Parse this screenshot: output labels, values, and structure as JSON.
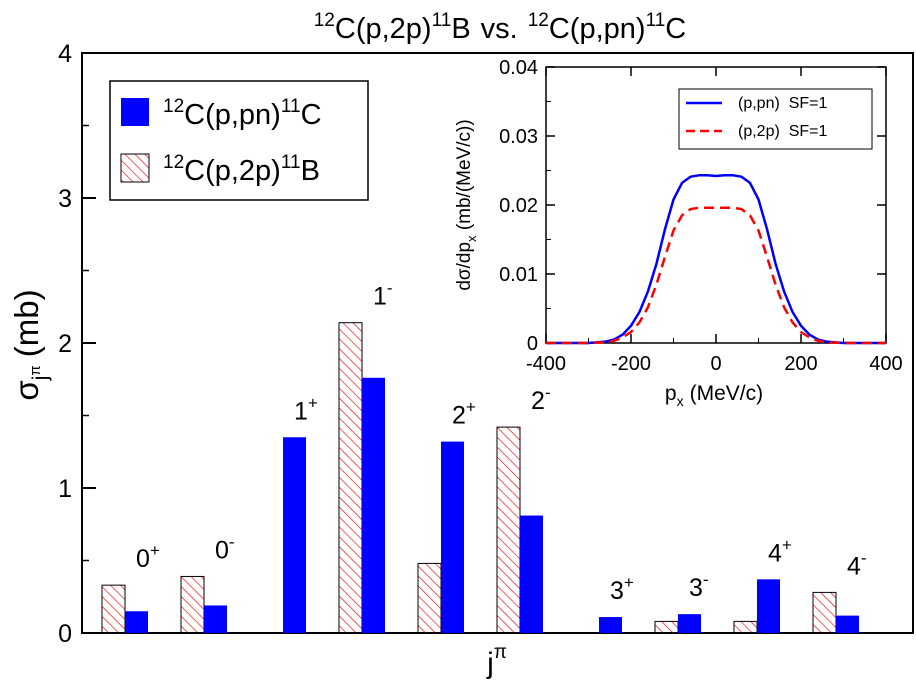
{
  "title": {
    "a_sup1": "12",
    "a_main1": "C(p,2p)",
    "a_sup2": "11",
    "a_main2": "B",
    "vs": "vs.",
    "b_sup1": "12",
    "b_main1": "C(p,pn)",
    "b_sup2": "11",
    "b_main2": "C"
  },
  "main_axes": {
    "xlabel_main": "j",
    "xlabel_sup": "π",
    "ylabel_main": "σ",
    "ylabel_sub": "j",
    "ylabel_subsup": "π",
    "ylabel_unit": "(mb)"
  },
  "legend": {
    "pn": {
      "sup1": "12",
      "main1": "C(p,pn)",
      "sup2": "11",
      "main2": "C"
    },
    "p2p": {
      "sup1": "12",
      "main1": "C(p,2p)",
      "sup2": "11",
      "main2": "B"
    }
  },
  "colors": {
    "pn": "#0000ff",
    "p2p": "#ff0000"
  },
  "chart_data": [
    {
      "type": "bar",
      "ylim": [
        0,
        4
      ],
      "yticks": [
        "0",
        "1",
        "2",
        "3",
        "4"
      ],
      "grid": false,
      "legend_position": "top-left",
      "groups": [
        {
          "label": "0",
          "parity": "+",
          "p2p": 0.33,
          "pn": 0.15
        },
        {
          "label": "0",
          "parity": "-",
          "p2p": 0.39,
          "pn": 0.19
        },
        {
          "label": "1",
          "parity": "+",
          "p2p": null,
          "pn": 1.35
        },
        {
          "label": "1",
          "parity": "-",
          "p2p": 2.14,
          "pn": 1.76
        },
        {
          "label": "2",
          "parity": "+",
          "p2p": 0.48,
          "pn": 1.32
        },
        {
          "label": "2",
          "parity": "-",
          "p2p": 1.42,
          "pn": 0.81
        },
        {
          "label": "3",
          "parity": "+",
          "p2p": null,
          "pn": 0.11
        },
        {
          "label": "3",
          "parity": "-",
          "p2p": 0.08,
          "pn": 0.13
        },
        {
          "label": "4",
          "parity": "+",
          "p2p": 0.08,
          "pn": 0.37
        },
        {
          "label": "4",
          "parity": "-",
          "p2p": 0.28,
          "pn": 0.12
        }
      ]
    },
    {
      "type": "line",
      "xlim": [
        -400,
        400
      ],
      "ylim": [
        0,
        0.04
      ],
      "xticks": [
        "-400",
        "-200",
        "0",
        "200",
        "400"
      ],
      "yticks": [
        "0",
        "0.01",
        "0.02",
        "0.03",
        "0.04"
      ],
      "xlabel_main": "p",
      "xlabel_sub": "x",
      "xlabel_unit": "(MeV/c)",
      "ylabel_a": "dσ/dp",
      "ylabel_sub": "x",
      "ylabel_b": " (mb/(MeV/c))",
      "legend_position": "top-right",
      "series": [
        {
          "name": "(p,pn)  SF=1",
          "style": "solid",
          "color": "#0000ff",
          "x": [
            -400,
            -300,
            -260,
            -240,
            -220,
            -200,
            -180,
            -160,
            -140,
            -120,
            -100,
            -80,
            -60,
            -40,
            -20,
            0,
            20,
            40,
            60,
            80,
            100,
            120,
            140,
            160,
            180,
            200,
            220,
            240,
            260,
            300,
            400
          ],
          "y": [
            0,
            0,
            0.0002,
            0.0005,
            0.0012,
            0.0025,
            0.0045,
            0.0075,
            0.0115,
            0.0165,
            0.0208,
            0.0232,
            0.0241,
            0.0243,
            0.0243,
            0.0242,
            0.0243,
            0.0243,
            0.0241,
            0.0232,
            0.0208,
            0.0165,
            0.0115,
            0.0075,
            0.0045,
            0.0025,
            0.0012,
            0.0005,
            0.0002,
            0,
            0
          ]
        },
        {
          "name": "(p,2p)  SF=1",
          "style": "dashed",
          "color": "#ff0000",
          "x": [
            -400,
            -300,
            -260,
            -240,
            -220,
            -200,
            -180,
            -160,
            -140,
            -120,
            -100,
            -80,
            -60,
            -40,
            -20,
            0,
            20,
            40,
            60,
            80,
            100,
            120,
            140,
            160,
            180,
            200,
            220,
            240,
            260,
            300,
            400
          ],
          "y": [
            0,
            0,
            0.0001,
            0.0003,
            0.0008,
            0.0016,
            0.003,
            0.0052,
            0.0085,
            0.0125,
            0.0163,
            0.0185,
            0.0194,
            0.0196,
            0.0196,
            0.0196,
            0.0196,
            0.0196,
            0.0194,
            0.0185,
            0.0163,
            0.0125,
            0.0085,
            0.0052,
            0.003,
            0.0016,
            0.0008,
            0.0003,
            0.0001,
            0,
            0
          ]
        }
      ]
    }
  ]
}
